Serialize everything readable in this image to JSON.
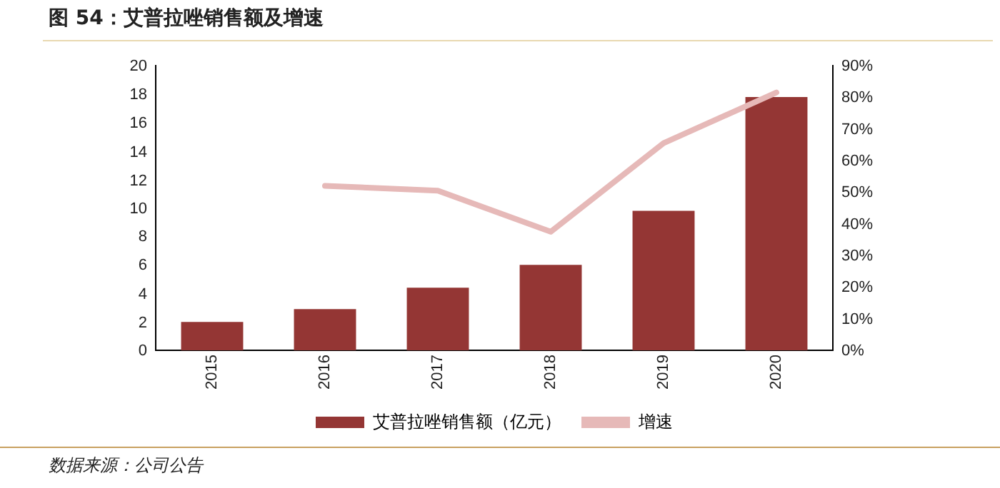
{
  "chart_data": {
    "type": "bar",
    "title": "图 54：艾普拉唑销售额及增速",
    "categories": [
      "2015",
      "2016",
      "2017",
      "2018",
      "2019",
      "2020"
    ],
    "series": [
      {
        "name": "艾普拉唑销售额（亿元）",
        "type": "bar",
        "color": "#943634",
        "values": [
          2.0,
          2.9,
          4.4,
          6.0,
          9.8,
          17.8
        ]
      },
      {
        "name": "增速",
        "type": "line",
        "axis": "y2",
        "color": "#e6b9b8",
        "values": [
          null,
          52,
          50.5,
          37.5,
          65.5,
          81.5
        ]
      }
    ],
    "ylim": [
      0,
      20
    ],
    "yticks": [
      0,
      2,
      4,
      6,
      8,
      10,
      12,
      14,
      16,
      18,
      20
    ],
    "y2lim": [
      0,
      90
    ],
    "y2ticks": [
      {
        "value": 0,
        "label": "0%"
      },
      {
        "value": 10,
        "label": "10%"
      },
      {
        "value": 20,
        "label": "20%"
      },
      {
        "value": 30,
        "label": "30%"
      },
      {
        "value": 40,
        "label": "40%"
      },
      {
        "value": 50,
        "label": "50%"
      },
      {
        "value": 60,
        "label": "60%"
      },
      {
        "value": 70,
        "label": "70%"
      },
      {
        "value": 80,
        "label": "80%"
      },
      {
        "value": 90,
        "label": "90%"
      }
    ],
    "grid": false,
    "legend": "bottom",
    "marker": "none",
    "annotations": [
      "数据来源：公司公告"
    ]
  }
}
